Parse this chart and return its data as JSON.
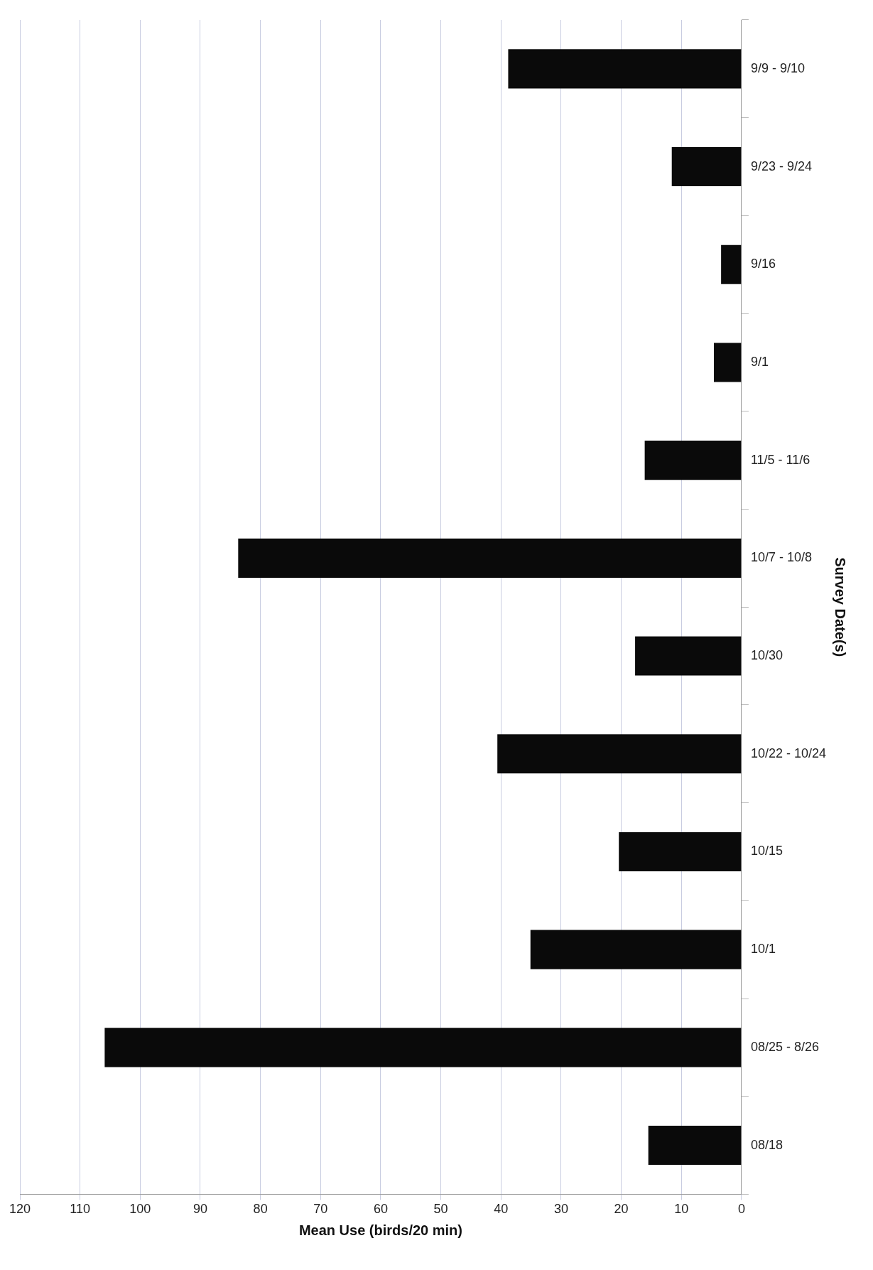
{
  "chart_data": {
    "type": "bar",
    "orientation": "horizontal",
    "xlabel": "Mean Use (birds/20 min)",
    "ylabel": "Survey Date(s)",
    "categories": [
      "9/9 - 9/10",
      "9/23 - 9/24",
      "9/16",
      "9/1",
      "11/5 - 11/6",
      "10/7 - 10/8",
      "10/30",
      "10/22 - 10/24",
      "10/15",
      "10/1",
      "08/25 - 8/26",
      "08/18"
    ],
    "values": [
      38.8,
      11.6,
      3.4,
      4.6,
      16.1,
      83.7,
      17.7,
      40.6,
      20.4,
      35.1,
      105.9,
      15.5
    ],
    "color": "#0a0a0a",
    "xlim": [
      120,
      0
    ],
    "xticks": [
      120,
      110,
      100,
      90,
      80,
      70,
      60,
      50,
      40,
      30,
      20,
      10,
      0
    ],
    "grid": "x",
    "legend": false
  }
}
